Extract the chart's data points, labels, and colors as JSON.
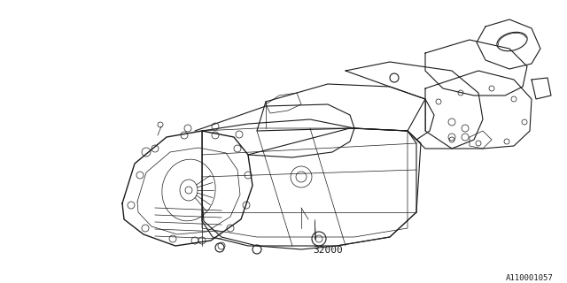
{
  "background_color": "#ffffff",
  "line_color": "#1a1a1a",
  "part_number": "32000",
  "diagram_ref": "A110001057",
  "lw_main": 0.8,
  "lw_thin": 0.5,
  "lw_thick": 1.0
}
